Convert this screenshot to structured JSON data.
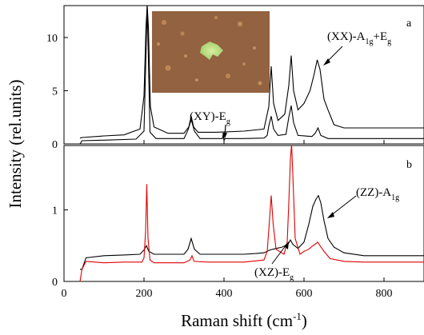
{
  "chart_data": [
    {
      "type": "line",
      "panel": "a",
      "xlim": [
        0,
        900
      ],
      "ylim": [
        0,
        13
      ],
      "x_ticks": [
        0,
        200,
        400,
        600,
        800
      ],
      "y_ticks": [
        0,
        5,
        10
      ],
      "tick_labels_x": [
        "0",
        "200",
        "400",
        "600",
        "800"
      ],
      "tick_labels_y": [
        "0",
        "5",
        "10"
      ],
      "panel_letter": "a",
      "inset_image": "optical micrograph of flake (green flake on brown substrate)",
      "annotations": {
        "xy": "(XY)-E",
        "xy_sub": "g",
        "xx_main": "(XX)-A",
        "xx_sub1": "1g",
        "xx_plus": "+E",
        "xx_sub2": "g"
      },
      "series": [
        {
          "color": "#000000",
          "x": [
            40,
            45,
            100,
            150,
            190,
            200,
            205,
            208,
            211,
            216,
            225,
            260,
            300,
            312,
            318,
            324,
            335,
            380,
            450,
            500,
            512,
            518,
            524,
            535,
            552,
            562,
            568,
            574,
            585,
            600,
            615,
            625,
            633,
            640,
            650,
            660,
            675,
            700,
            750,
            800,
            850,
            900
          ],
          "y": [
            0.55,
            0.6,
            0.75,
            0.85,
            1.4,
            4.5,
            11,
            13,
            11,
            3.5,
            1.6,
            1.0,
            1.0,
            1.6,
            2.6,
            1.6,
            1.1,
            1.1,
            1.2,
            1.4,
            3.5,
            7.3,
            3.8,
            2.2,
            2.8,
            5.5,
            8.3,
            5.0,
            3.2,
            3.8,
            5.0,
            6.5,
            7.9,
            7.0,
            4.2,
            3.2,
            1.8,
            1.5,
            1.5,
            1.5,
            1.5,
            1.5
          ]
        },
        {
          "color": "#000000",
          "x": [
            40,
            45,
            100,
            180,
            200,
            208,
            215,
            230,
            300,
            310,
            318,
            326,
            340,
            396,
            398,
            400,
            402,
            450,
            500,
            508,
            512,
            518,
            524,
            535,
            555,
            562,
            568,
            574,
            585,
            620,
            628,
            635,
            642,
            660,
            700,
            800,
            900
          ],
          "y": [
            0.0,
            0.3,
            0.35,
            0.45,
            1.2,
            13,
            1.1,
            0.5,
            0.5,
            1.3,
            2.3,
            1.2,
            0.5,
            0.5,
            0.9,
            0.3,
            0.5,
            0.5,
            0.55,
            0.8,
            1.7,
            2.6,
            1.4,
            0.8,
            0.9,
            2.5,
            3.6,
            2.0,
            0.8,
            0.7,
            1.0,
            1.5,
            0.8,
            0.5,
            0.5,
            0.5,
            0.5
          ]
        }
      ]
    },
    {
      "type": "line",
      "panel": "b",
      "xlim": [
        0,
        900
      ],
      "ylim": [
        0,
        1.9
      ],
      "x_ticks": [
        0,
        200,
        400,
        600,
        800
      ],
      "y_ticks": [
        0,
        1
      ],
      "tick_labels_x": [
        "0",
        "200",
        "400",
        "600",
        "800"
      ],
      "tick_labels_y": [
        "0",
        "1"
      ],
      "panel_letter": "b",
      "xlabel": "Raman shift (cm",
      "xlabel_sup": "-1",
      "xlabel_end": ")",
      "ylabel": "Intensity (rel.units)",
      "annotations": {
        "zz_main": "(ZZ)-A",
        "zz_sub": "1g",
        "xz_main": "(XZ)-E",
        "xz_sub": "g"
      },
      "series": [
        {
          "color": "#000000",
          "x": [
            40,
            45,
            55,
            100,
            150,
            190,
            200,
            206,
            212,
            225,
            260,
            300,
            310,
            318,
            326,
            340,
            400,
            450,
            480,
            500,
            515,
            530,
            545,
            560,
            566,
            572,
            585,
            600,
            612,
            622,
            630,
            636,
            642,
            650,
            660,
            675,
            700,
            750,
            800,
            850,
            900
          ],
          "y": [
            0.17,
            0.17,
            0.33,
            0.36,
            0.37,
            0.38,
            0.44,
            0.5,
            0.42,
            0.38,
            0.38,
            0.38,
            0.45,
            0.6,
            0.45,
            0.38,
            0.38,
            0.38,
            0.39,
            0.4,
            0.44,
            0.46,
            0.48,
            0.52,
            0.58,
            0.52,
            0.46,
            0.55,
            0.8,
            1.05,
            1.15,
            1.2,
            1.1,
            0.85,
            0.6,
            0.48,
            0.4,
            0.36,
            0.36,
            0.36,
            0.36
          ]
        },
        {
          "color": "#e00000",
          "x": [
            40,
            45,
            55,
            100,
            150,
            195,
            200,
            204,
            207,
            210,
            215,
            225,
            260,
            300,
            315,
            320,
            325,
            360,
            400,
            450,
            500,
            508,
            513,
            518,
            523,
            530,
            550,
            558,
            562,
            566,
            569,
            572,
            578,
            590,
            600,
            612,
            622,
            628,
            634,
            640,
            650,
            665,
            700,
            750,
            800,
            850,
            900
          ],
          "y": [
            0.0,
            0.17,
            0.28,
            0.26,
            0.27,
            0.27,
            0.33,
            0.7,
            1.36,
            0.6,
            0.3,
            0.26,
            0.26,
            0.26,
            0.3,
            0.36,
            0.28,
            0.27,
            0.27,
            0.27,
            0.3,
            0.42,
            0.8,
            1.2,
            0.8,
            0.45,
            0.38,
            0.55,
            1.1,
            1.7,
            1.92,
            1.5,
            0.6,
            0.38,
            0.42,
            0.45,
            0.5,
            0.52,
            0.55,
            0.5,
            0.42,
            0.32,
            0.28,
            0.27,
            0.27,
            0.27,
            0.27
          ]
        }
      ]
    }
  ]
}
